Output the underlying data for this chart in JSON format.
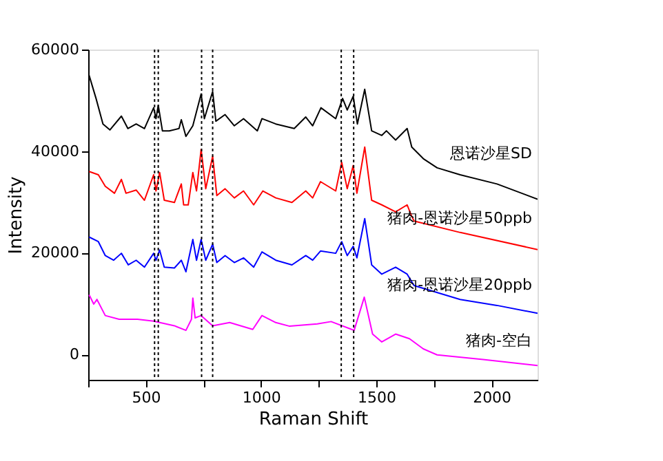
{
  "chart_data": {
    "type": "line",
    "xlabel": "Raman Shift",
    "ylabel": "Intensity",
    "xlim": [
      250,
      2200
    ],
    "ylim": [
      -5000,
      60000
    ],
    "xticks": [
      {
        "value": 250,
        "label": null
      },
      500,
      {
        "value": 750,
        "label": null
      },
      1000,
      {
        "value": 1250,
        "label": null
      },
      1500,
      {
        "value": 1750,
        "label": null
      },
      2000
    ],
    "yticks": [
      0,
      20000,
      40000,
      60000
    ],
    "grid": false,
    "legend": false,
    "marker": "none",
    "line_style": "solid",
    "ref_lines": [
      {
        "axis": "x",
        "value": 538,
        "color": "#000000",
        "line_style": "dotted"
      },
      {
        "axis": "x",
        "value": 554,
        "color": "#000000",
        "line_style": "dotted"
      },
      {
        "axis": "x",
        "value": 742,
        "color": "#000000",
        "line_style": "dotted"
      },
      {
        "axis": "x",
        "value": 790,
        "color": "#000000",
        "line_style": "dotted"
      },
      {
        "axis": "x",
        "value": 1348,
        "color": "#000000",
        "line_style": "dotted"
      },
      {
        "axis": "x",
        "value": 1402,
        "color": "#000000",
        "line_style": "dotted"
      }
    ],
    "series": [
      {
        "name": "恩诺沙星SD",
        "color": "#000000",
        "x": [
          254,
          284,
          314,
          344,
          394,
          422,
          458,
          494,
          534,
          544,
          554,
          572,
          602,
          644,
          654,
          674,
          704,
          740,
          754,
          790,
          804,
          844,
          884,
          924,
          984,
          1004,
          1064,
          1144,
          1194,
          1224,
          1260,
          1324,
          1354,
          1374,
          1400,
          1418,
          1450,
          1480,
          1524,
          1544,
          1584,
          1634,
          1654,
          1704,
          1764,
          1864,
          2024,
          2200
        ],
        "values": [
          54900,
          50370,
          45350,
          44180,
          46900,
          44450,
          45350,
          44450,
          48540,
          46400,
          49000,
          44000,
          44000,
          44450,
          46200,
          42900,
          45000,
          51270,
          46400,
          51730,
          45900,
          47200,
          45000,
          46400,
          44000,
          46400,
          45350,
          44450,
          46720,
          45000,
          48540,
          46400,
          50370,
          48100,
          50800,
          45350,
          52170,
          44000,
          43100,
          44000,
          42190,
          44450,
          40800,
          38530,
          36720,
          35350,
          33540,
          30540
        ]
      },
      {
        "name": "猪肉-恩诺沙星50ppb",
        "color": "#ff0000",
        "x": [
          254,
          294,
          324,
          364,
          394,
          414,
          458,
          494,
          534,
          544,
          560,
          580,
          624,
          654,
          664,
          684,
          704,
          720,
          740,
          760,
          790,
          808,
          844,
          884,
          924,
          968,
          1008,
          1064,
          1134,
          1194,
          1224,
          1258,
          1324,
          1350,
          1374,
          1400,
          1416,
          1450,
          1480,
          1524,
          1584,
          1634,
          1654,
          1664,
          1864,
          2200
        ],
        "values": [
          36000,
          35350,
          33080,
          31720,
          34440,
          31720,
          32350,
          30340,
          35350,
          32170,
          35800,
          30340,
          29900,
          33540,
          29430,
          29430,
          35800,
          32170,
          40360,
          32600,
          39000,
          31270,
          32600,
          30800,
          32170,
          29430,
          32170,
          30800,
          29900,
          32170,
          30800,
          34000,
          32170,
          37800,
          32600,
          37170,
          31720,
          40820,
          30340,
          29430,
          28070,
          29430,
          27160,
          26260,
          24000,
          20640
        ]
      },
      {
        "name": "猪肉-恩诺沙星20ppb",
        "color": "#0000ff",
        "x": [
          254,
          294,
          324,
          360,
          394,
          424,
          458,
          494,
          534,
          544,
          560,
          580,
          624,
          654,
          674,
          704,
          720,
          740,
          760,
          790,
          808,
          844,
          884,
          924,
          968,
          1004,
          1064,
          1134,
          1194,
          1224,
          1258,
          1324,
          1350,
          1374,
          1400,
          1416,
          1450,
          1480,
          1524,
          1584,
          1634,
          1664,
          1864,
          2024,
          2200
        ],
        "values": [
          23100,
          22190,
          19450,
          18530,
          19900,
          17620,
          18530,
          17170,
          19900,
          18530,
          20540,
          17170,
          17000,
          18530,
          16260,
          22630,
          18530,
          22630,
          18530,
          21700,
          18080,
          19450,
          18080,
          19000,
          17170,
          20170,
          18540,
          17620,
          19450,
          18540,
          20350,
          19900,
          22190,
          19450,
          21250,
          19000,
          26720,
          17620,
          15800,
          17170,
          15800,
          13550,
          10820,
          9640,
          8100
        ]
      },
      {
        "name": "猪肉-空白",
        "color": "#ff00ff",
        "x": [
          254,
          274,
          288,
          324,
          384,
          464,
          534,
          624,
          674,
          698,
          704,
          714,
          740,
          790,
          864,
          964,
          1004,
          1064,
          1124,
          1244,
          1304,
          1404,
          1448,
          1484,
          1524,
          1584,
          1644,
          1704,
          1764,
          1964,
          2200
        ],
        "values": [
          11730,
          9900,
          10820,
          7640,
          6910,
          6910,
          6550,
          5640,
          4730,
          6910,
          11090,
          7180,
          7640,
          5640,
          6270,
          4910,
          7640,
          6270,
          5550,
          6000,
          6460,
          4730,
          11270,
          4000,
          2460,
          4000,
          3100,
          1090,
          -90,
          -1000,
          -2180
        ]
      }
    ]
  }
}
